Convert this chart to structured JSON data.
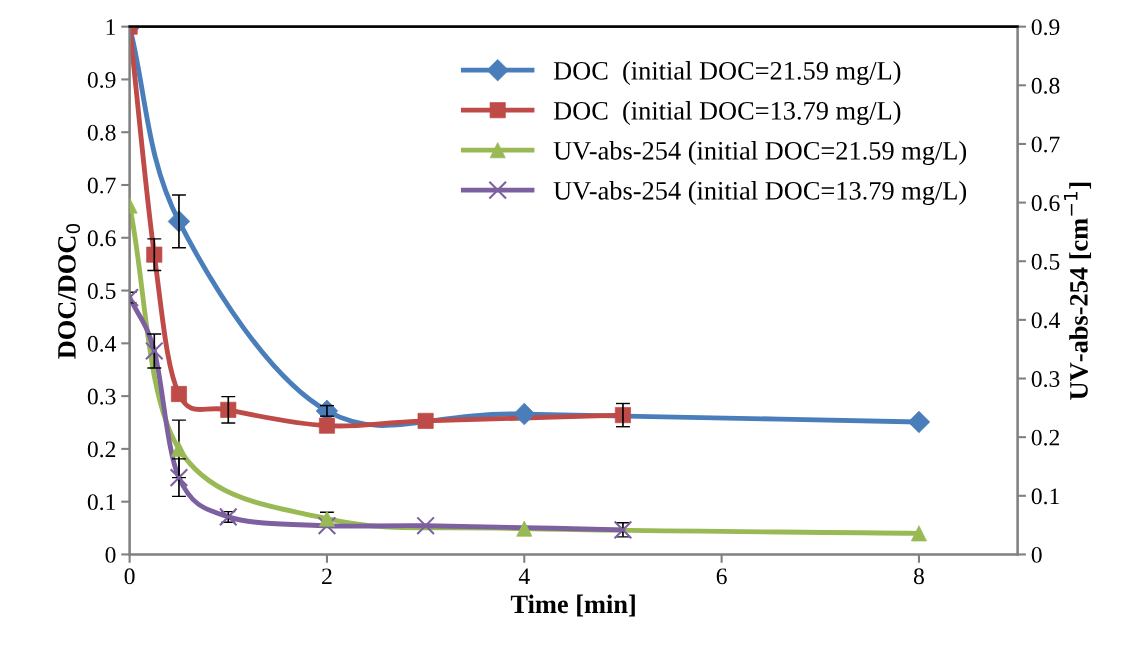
{
  "chart_data": {
    "type": "line",
    "xlabel": "Time [min]",
    "ylabel": "DOC/DOC$_{0}$",
    "y2label": "UV-abs-254 [cm$^{−1}$]",
    "xlim": [
      0,
      9
    ],
    "xticks": [
      0,
      2,
      4,
      6,
      8
    ],
    "ylim": [
      0,
      1
    ],
    "yticks": [
      0,
      0.1,
      0.2,
      0.3,
      0.4,
      0.5,
      0.6,
      0.7,
      0.8,
      0.9,
      1
    ],
    "y2lim": [
      0,
      0.9
    ],
    "y2ticks": [
      0,
      0.1,
      0.2,
      0.3,
      0.4,
      0.5,
      0.6,
      0.7,
      0.8,
      0.9
    ],
    "grid": false,
    "legend": "top right",
    "line_style": "solid",
    "series": [
      {
        "name": "DOC  (initial DOC=21.59 mg/L)",
        "color": "#4a7ebb",
        "marker": "diamond",
        "x": [
          0,
          0.5,
          2,
          4,
          8
        ],
        "values": [
          1.0,
          0.631,
          0.272,
          0.266,
          0.251
        ],
        "errors": [
          null,
          0.05,
          0.01,
          null,
          null
        ]
      },
      {
        "name": "DOC  (initial DOC=13.79 mg/L)",
        "color": "#be4b48",
        "marker": "square",
        "x": [
          0,
          0.25,
          0.5,
          1,
          2,
          3,
          5
        ],
        "values": [
          1.0,
          0.568,
          0.304,
          0.274,
          0.244,
          0.253,
          0.264
        ],
        "errors": [
          null,
          0.03,
          null,
          0.025,
          null,
          null,
          0.022
        ]
      },
      {
        "name": "UV-abs-254 (initial DOC=21.59 mg/L)",
        "color": "#98b954",
        "marker": "triangle",
        "axis": "y2",
        "x": [
          0,
          0.5,
          2,
          4,
          8
        ],
        "values": [
          0.595,
          0.18,
          0.061,
          0.044,
          0.036
        ],
        "errors": [
          null,
          0.049,
          0.011,
          null,
          null
        ]
      },
      {
        "name": "UV-abs-254 (initial DOC=13.79 mg/L)",
        "color": "#7d60a0",
        "marker": "cross",
        "axis": "y2",
        "x": [
          0,
          0.25,
          0.5,
          1,
          2,
          3,
          5
        ],
        "values": [
          0.438,
          0.347,
          0.131,
          0.064,
          0.049,
          0.049,
          0.042
        ],
        "errors": [
          0.009,
          0.029,
          0.032,
          0.009,
          null,
          null,
          0.012
        ]
      }
    ]
  }
}
